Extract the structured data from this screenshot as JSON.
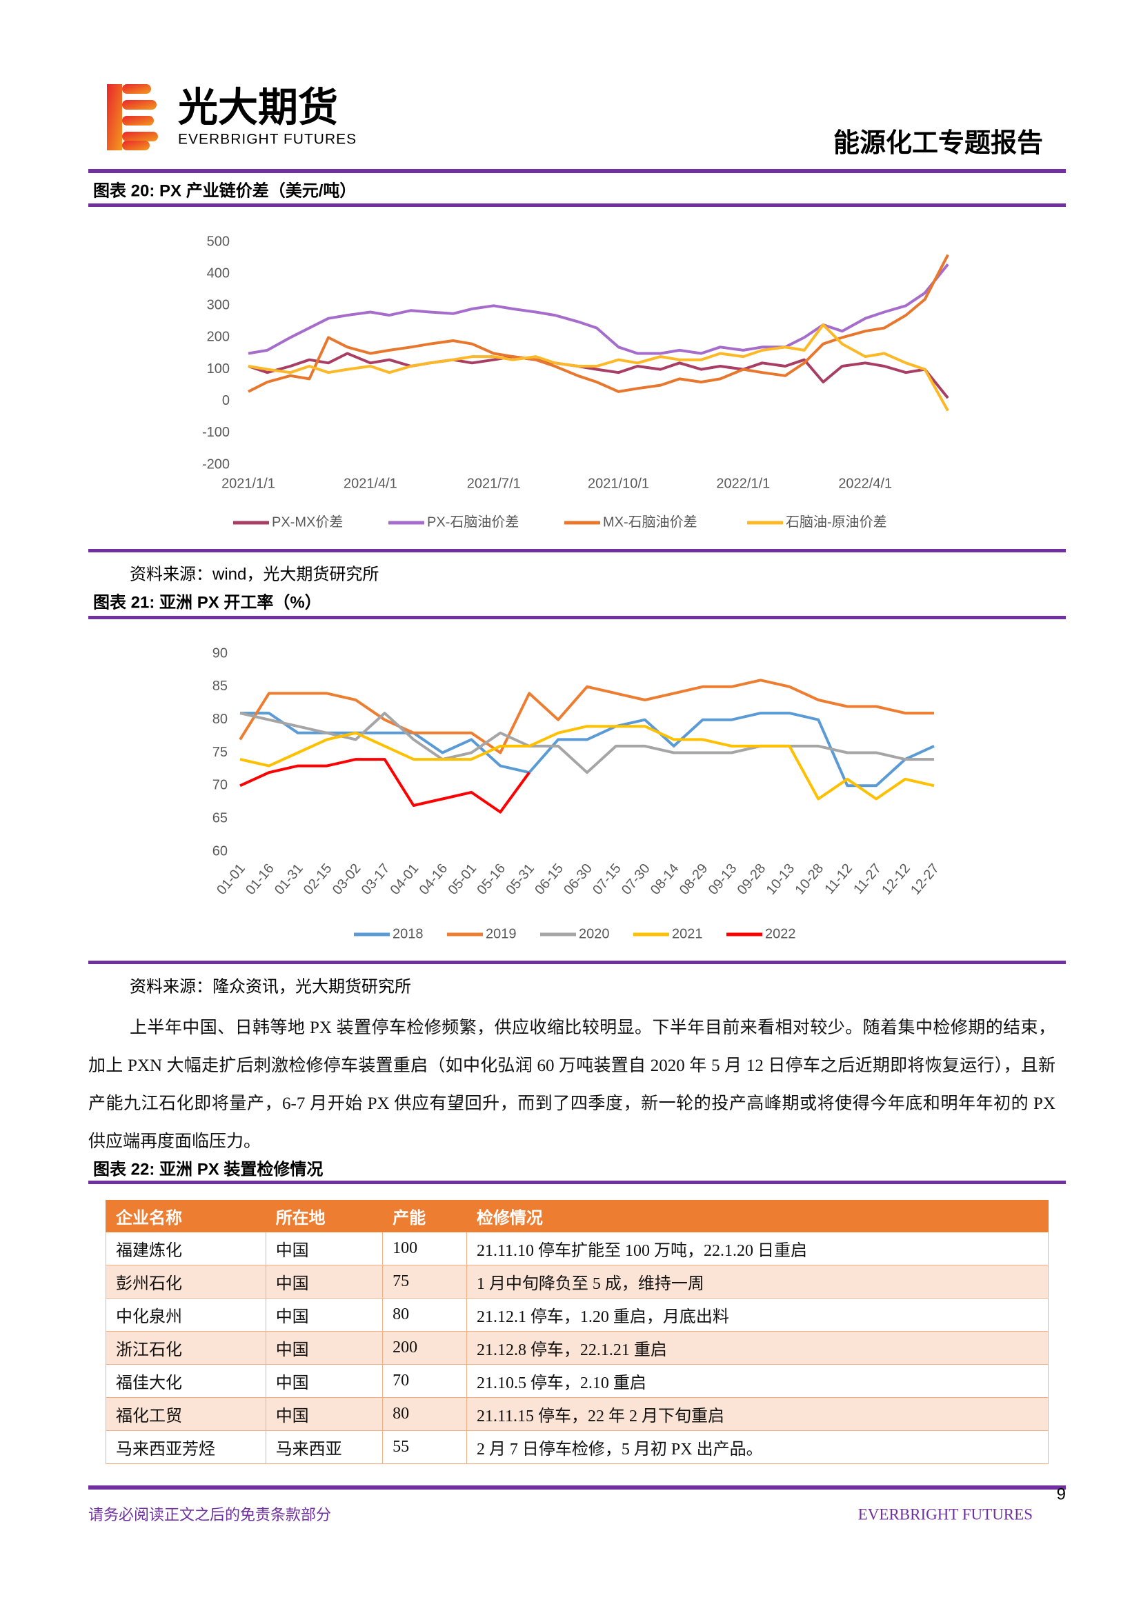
{
  "header": {
    "brand_cn": "光大期货",
    "brand_en": "EVERBRIGHT FUTURES",
    "report_title": "能源化工专题报告"
  },
  "chart_data": [
    {
      "type": "line",
      "title": "图表 20: PX 产业链价差（美元/吨）",
      "source": "资料来源：wind，光大期货研究所",
      "x": [
        "2021/1/1",
        "2021/1/15",
        "2021/2/1",
        "2021/2/15",
        "2021/3/1",
        "2021/3/15",
        "2021/4/1",
        "2021/4/15",
        "2021/5/1",
        "2021/5/15",
        "2021/6/1",
        "2021/6/15",
        "2021/7/1",
        "2021/7/15",
        "2021/8/1",
        "2021/8/15",
        "2021/9/1",
        "2021/9/15",
        "2021/10/1",
        "2021/10/15",
        "2021/11/1",
        "2021/11/15",
        "2021/12/1",
        "2021/12/15",
        "2022/1/1",
        "2022/1/15",
        "2022/2/1",
        "2022/2/15",
        "2022/3/1",
        "2022/3/15",
        "2022/4/1",
        "2022/4/15",
        "2022/5/1",
        "2022/5/15",
        "2022/6/1"
      ],
      "xlim": [
        "2021/1/1",
        "2022/6/5"
      ],
      "xticks": [
        "2021/1/1",
        "2021/4/1",
        "2021/7/1",
        "2021/10/1",
        "2022/1/1",
        "2022/4/1"
      ],
      "ylim": [
        -200,
        500
      ],
      "yticks": [
        500,
        400,
        300,
        200,
        100,
        0,
        -100,
        -200
      ],
      "grid": false,
      "legend": "bottom",
      "series": [
        {
          "name": "PX-MX价差",
          "color": "#A83E63",
          "values": [
            110,
            90,
            110,
            130,
            120,
            150,
            120,
            130,
            110,
            120,
            130,
            120,
            130,
            140,
            130,
            120,
            110,
            100,
            90,
            110,
            100,
            120,
            100,
            110,
            100,
            120,
            110,
            130,
            60,
            110,
            120,
            110,
            90,
            100,
            10
          ]
        },
        {
          "name": "PX-石脑油价差",
          "color": "#A66CCB",
          "values": [
            150,
            160,
            200,
            230,
            260,
            270,
            280,
            270,
            285,
            280,
            275,
            290,
            300,
            290,
            280,
            270,
            250,
            230,
            170,
            150,
            150,
            160,
            150,
            170,
            160,
            170,
            170,
            200,
            240,
            220,
            260,
            280,
            300,
            340,
            430
          ]
        },
        {
          "name": "MX-石脑油价差",
          "color": "#E8772E",
          "values": [
            30,
            60,
            80,
            70,
            200,
            170,
            150,
            160,
            170,
            180,
            190,
            180,
            150,
            140,
            130,
            110,
            80,
            60,
            30,
            40,
            50,
            70,
            60,
            70,
            100,
            90,
            80,
            120,
            180,
            200,
            220,
            230,
            270,
            320,
            460
          ]
        },
        {
          "name": "石脑油-原油价差",
          "color": "#FDB827",
          "values": [
            110,
            100,
            90,
            110,
            90,
            100,
            110,
            90,
            110,
            120,
            130,
            140,
            140,
            130,
            140,
            120,
            110,
            110,
            130,
            120,
            140,
            130,
            130,
            150,
            140,
            160,
            170,
            160,
            240,
            180,
            140,
            150,
            120,
            100,
            -30
          ]
        }
      ]
    },
    {
      "type": "line",
      "title": "图表 21: 亚洲 PX 开工率（%）",
      "source": "资料来源：隆众资讯，光大期货研究所",
      "categories": [
        "01-01",
        "01-16",
        "01-31",
        "02-15",
        "03-02",
        "03-17",
        "04-01",
        "04-16",
        "05-01",
        "05-16",
        "05-31",
        "06-15",
        "06-30",
        "07-15",
        "07-30",
        "08-14",
        "08-29",
        "09-13",
        "09-28",
        "10-13",
        "10-28",
        "11-12",
        "11-27",
        "12-12",
        "12-27"
      ],
      "ylim": [
        60,
        90
      ],
      "yticks": [
        90,
        85,
        80,
        75,
        70,
        65,
        60
      ],
      "grid": false,
      "legend": "bottom",
      "series": [
        {
          "name": "2018",
          "color": "#5B9BD5",
          "values": [
            81,
            81,
            78,
            78,
            78,
            78,
            78,
            75,
            77,
            73,
            72,
            77,
            77,
            79,
            80,
            76,
            80,
            80,
            81,
            81,
            80,
            70,
            70,
            74,
            76
          ]
        },
        {
          "name": "2019",
          "color": "#ED7D31",
          "values": [
            77,
            84,
            84,
            84,
            83,
            80,
            78,
            78,
            78,
            75,
            84,
            80,
            85,
            84,
            83,
            84,
            85,
            85,
            86,
            85,
            83,
            82,
            82,
            81,
            81
          ]
        },
        {
          "name": "2020",
          "color": "#A5A5A5",
          "values": [
            81,
            80,
            79,
            78,
            77,
            81,
            77,
            74,
            75,
            78,
            76,
            76,
            72,
            76,
            76,
            75,
            75,
            75,
            76,
            76,
            76,
            75,
            75,
            74,
            74
          ]
        },
        {
          "name": "2021",
          "color": "#FFC000",
          "values": [
            74,
            73,
            75,
            77,
            78,
            76,
            74,
            74,
            74,
            76,
            76,
            78,
            79,
            79,
            79,
            77,
            77,
            76,
            76,
            76,
            68,
            71,
            68,
            71,
            70
          ]
        },
        {
          "name": "2022",
          "color": "#FF0000",
          "values": [
            70,
            72,
            73,
            73,
            74,
            74,
            67,
            68,
            69,
            66,
            72,
            null,
            null,
            null,
            null,
            null,
            null,
            null,
            null,
            null,
            null,
            null,
            null,
            null,
            null
          ]
        }
      ]
    }
  ],
  "body": {
    "paragraph": "上半年中国、日韩等地 PX 装置停车检修频繁，供应收缩比较明显。下半年目前来看相对较少。随着集中检修期的结束，加上 PXN 大幅走扩后刺激检修停车装置重启（如中化弘润 60 万吨装置自 2020 年 5 月 12 日停车之后近期即将恢复运行），且新产能九江石化即将量产，6-7 月开始 PX 供应有望回升，而到了四季度，新一轮的投产高峰期或将使得今年底和明年年初的 PX 供应端再度面临压力。"
  },
  "table": {
    "title": "图表 22: 亚洲 PX 装置检修情况",
    "columns": [
      "企业名称",
      "所在地",
      "产能",
      "检修情况"
    ],
    "rows": [
      [
        "福建炼化",
        "中国",
        100,
        "21.11.10 停车扩能至 100 万吨，22.1.20 日重启"
      ],
      [
        "彭州石化",
        "中国",
        75,
        "1 月中旬降负至 5 成，维持一周"
      ],
      [
        "中化泉州",
        "中国",
        80,
        "21.12.1 停车，1.20 重启，月底出料"
      ],
      [
        "浙江石化",
        "中国",
        200,
        "21.12.8 停车，22.1.21 重启"
      ],
      [
        "福佳大化",
        "中国",
        70,
        "21.10.5 停车，2.10 重启"
      ],
      [
        "福化工贸",
        "中国",
        80,
        "21.11.15 停车，22 年 2 月下旬重启"
      ],
      [
        "马来西亚芳烃",
        "马来西亚",
        55,
        "2 月 7 日停车检修，5 月初 PX 出产品。"
      ]
    ]
  },
  "footer": {
    "page_number": 9,
    "disclaimer": "请务必阅读正文之后的免责条款部分",
    "brand": "EVERBRIGHT FUTURES"
  }
}
